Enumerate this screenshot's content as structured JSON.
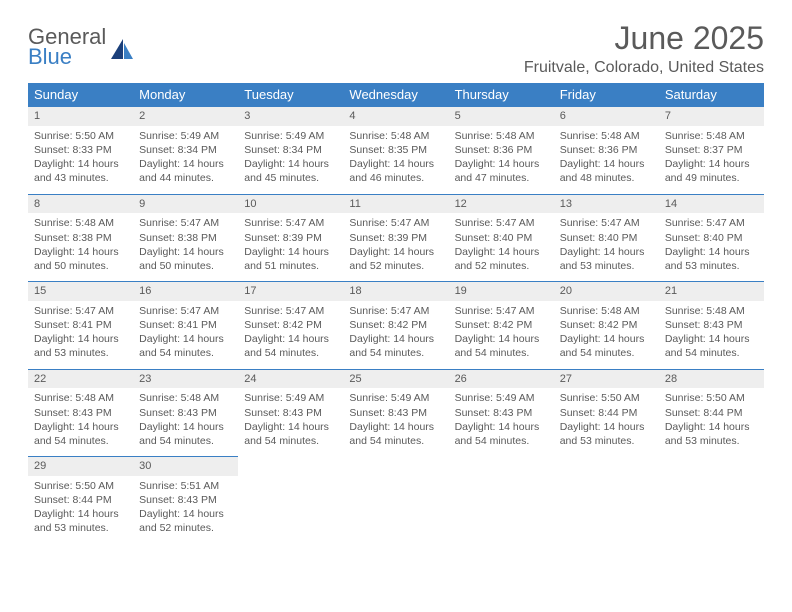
{
  "brand": {
    "top": "General",
    "bottom": "Blue"
  },
  "title": "June 2025",
  "location": "Fruitvale, Colorado, United States",
  "colors": {
    "header_bg": "#3a7fc4",
    "header_text": "#ffffff",
    "daynum_bg": "#eeeeee",
    "body_text": "#5a5a5a",
    "row_divider": "#3a7fc4",
    "page_bg": "#ffffff"
  },
  "day_headers": [
    "Sunday",
    "Monday",
    "Tuesday",
    "Wednesday",
    "Thursday",
    "Friday",
    "Saturday"
  ],
  "weeks": [
    [
      {
        "n": "1",
        "sr": "Sunrise: 5:50 AM",
        "ss": "Sunset: 8:33 PM",
        "d1": "Daylight: 14 hours",
        "d2": "and 43 minutes."
      },
      {
        "n": "2",
        "sr": "Sunrise: 5:49 AM",
        "ss": "Sunset: 8:34 PM",
        "d1": "Daylight: 14 hours",
        "d2": "and 44 minutes."
      },
      {
        "n": "3",
        "sr": "Sunrise: 5:49 AM",
        "ss": "Sunset: 8:34 PM",
        "d1": "Daylight: 14 hours",
        "d2": "and 45 minutes."
      },
      {
        "n": "4",
        "sr": "Sunrise: 5:48 AM",
        "ss": "Sunset: 8:35 PM",
        "d1": "Daylight: 14 hours",
        "d2": "and 46 minutes."
      },
      {
        "n": "5",
        "sr": "Sunrise: 5:48 AM",
        "ss": "Sunset: 8:36 PM",
        "d1": "Daylight: 14 hours",
        "d2": "and 47 minutes."
      },
      {
        "n": "6",
        "sr": "Sunrise: 5:48 AM",
        "ss": "Sunset: 8:36 PM",
        "d1": "Daylight: 14 hours",
        "d2": "and 48 minutes."
      },
      {
        "n": "7",
        "sr": "Sunrise: 5:48 AM",
        "ss": "Sunset: 8:37 PM",
        "d1": "Daylight: 14 hours",
        "d2": "and 49 minutes."
      }
    ],
    [
      {
        "n": "8",
        "sr": "Sunrise: 5:48 AM",
        "ss": "Sunset: 8:38 PM",
        "d1": "Daylight: 14 hours",
        "d2": "and 50 minutes."
      },
      {
        "n": "9",
        "sr": "Sunrise: 5:47 AM",
        "ss": "Sunset: 8:38 PM",
        "d1": "Daylight: 14 hours",
        "d2": "and 50 minutes."
      },
      {
        "n": "10",
        "sr": "Sunrise: 5:47 AM",
        "ss": "Sunset: 8:39 PM",
        "d1": "Daylight: 14 hours",
        "d2": "and 51 minutes."
      },
      {
        "n": "11",
        "sr": "Sunrise: 5:47 AM",
        "ss": "Sunset: 8:39 PM",
        "d1": "Daylight: 14 hours",
        "d2": "and 52 minutes."
      },
      {
        "n": "12",
        "sr": "Sunrise: 5:47 AM",
        "ss": "Sunset: 8:40 PM",
        "d1": "Daylight: 14 hours",
        "d2": "and 52 minutes."
      },
      {
        "n": "13",
        "sr": "Sunrise: 5:47 AM",
        "ss": "Sunset: 8:40 PM",
        "d1": "Daylight: 14 hours",
        "d2": "and 53 minutes."
      },
      {
        "n": "14",
        "sr": "Sunrise: 5:47 AM",
        "ss": "Sunset: 8:40 PM",
        "d1": "Daylight: 14 hours",
        "d2": "and 53 minutes."
      }
    ],
    [
      {
        "n": "15",
        "sr": "Sunrise: 5:47 AM",
        "ss": "Sunset: 8:41 PM",
        "d1": "Daylight: 14 hours",
        "d2": "and 53 minutes."
      },
      {
        "n": "16",
        "sr": "Sunrise: 5:47 AM",
        "ss": "Sunset: 8:41 PM",
        "d1": "Daylight: 14 hours",
        "d2": "and 54 minutes."
      },
      {
        "n": "17",
        "sr": "Sunrise: 5:47 AM",
        "ss": "Sunset: 8:42 PM",
        "d1": "Daylight: 14 hours",
        "d2": "and 54 minutes."
      },
      {
        "n": "18",
        "sr": "Sunrise: 5:47 AM",
        "ss": "Sunset: 8:42 PM",
        "d1": "Daylight: 14 hours",
        "d2": "and 54 minutes."
      },
      {
        "n": "19",
        "sr": "Sunrise: 5:47 AM",
        "ss": "Sunset: 8:42 PM",
        "d1": "Daylight: 14 hours",
        "d2": "and 54 minutes."
      },
      {
        "n": "20",
        "sr": "Sunrise: 5:48 AM",
        "ss": "Sunset: 8:42 PM",
        "d1": "Daylight: 14 hours",
        "d2": "and 54 minutes."
      },
      {
        "n": "21",
        "sr": "Sunrise: 5:48 AM",
        "ss": "Sunset: 8:43 PM",
        "d1": "Daylight: 14 hours",
        "d2": "and 54 minutes."
      }
    ],
    [
      {
        "n": "22",
        "sr": "Sunrise: 5:48 AM",
        "ss": "Sunset: 8:43 PM",
        "d1": "Daylight: 14 hours",
        "d2": "and 54 minutes."
      },
      {
        "n": "23",
        "sr": "Sunrise: 5:48 AM",
        "ss": "Sunset: 8:43 PM",
        "d1": "Daylight: 14 hours",
        "d2": "and 54 minutes."
      },
      {
        "n": "24",
        "sr": "Sunrise: 5:49 AM",
        "ss": "Sunset: 8:43 PM",
        "d1": "Daylight: 14 hours",
        "d2": "and 54 minutes."
      },
      {
        "n": "25",
        "sr": "Sunrise: 5:49 AM",
        "ss": "Sunset: 8:43 PM",
        "d1": "Daylight: 14 hours",
        "d2": "and 54 minutes."
      },
      {
        "n": "26",
        "sr": "Sunrise: 5:49 AM",
        "ss": "Sunset: 8:43 PM",
        "d1": "Daylight: 14 hours",
        "d2": "and 54 minutes."
      },
      {
        "n": "27",
        "sr": "Sunrise: 5:50 AM",
        "ss": "Sunset: 8:44 PM",
        "d1": "Daylight: 14 hours",
        "d2": "and 53 minutes."
      },
      {
        "n": "28",
        "sr": "Sunrise: 5:50 AM",
        "ss": "Sunset: 8:44 PM",
        "d1": "Daylight: 14 hours",
        "d2": "and 53 minutes."
      }
    ],
    [
      {
        "n": "29",
        "sr": "Sunrise: 5:50 AM",
        "ss": "Sunset: 8:44 PM",
        "d1": "Daylight: 14 hours",
        "d2": "and 53 minutes."
      },
      {
        "n": "30",
        "sr": "Sunrise: 5:51 AM",
        "ss": "Sunset: 8:43 PM",
        "d1": "Daylight: 14 hours",
        "d2": "and 52 minutes."
      },
      null,
      null,
      null,
      null,
      null
    ]
  ]
}
